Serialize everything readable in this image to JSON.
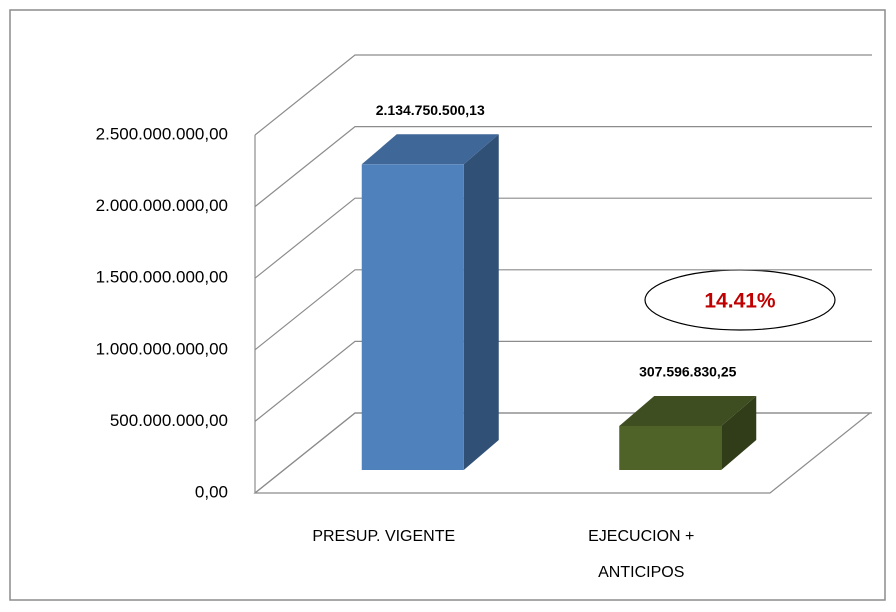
{
  "chart_data": {
    "type": "bar3d",
    "categories": [
      "PRESUP. VIGENTE",
      "EJECUCION + ANTICIPOS"
    ],
    "series": [
      {
        "values": [
          2134750500.13,
          307596830.25
        ],
        "colors": [
          "#4f81bd",
          "#4f6228"
        ],
        "value_labels": [
          "2.134.750.500,13",
          "307.596.830,25"
        ]
      }
    ],
    "ylim": [
      0,
      2500000000
    ],
    "yticks": [
      {
        "value": 0,
        "label": "0,00"
      },
      {
        "value": 500000000,
        "label": "500.000.000,00"
      },
      {
        "value": 1000000000,
        "label": "1.000.000.000,00"
      },
      {
        "value": 1500000000,
        "label": "1.500.000.000,00"
      },
      {
        "value": 2000000000,
        "label": "2.000.000.000,00"
      },
      {
        "value": 2500000000,
        "label": "2.500.000.000,00"
      }
    ],
    "grid": true,
    "annotation": "14.41%"
  }
}
